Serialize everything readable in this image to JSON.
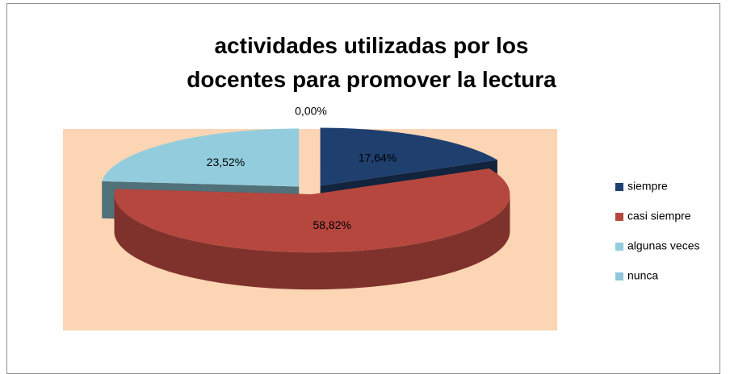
{
  "chart_data": {
    "type": "pie3d",
    "title": "actividades utilizadas por los docentes para promover la lectura",
    "categories": [
      "siempre",
      "casi siempre",
      "algunas veces",
      "nunca"
    ],
    "values": [
      17.64,
      58.82,
      23.52,
      0
    ],
    "value_labels": [
      "17,64%",
      "58,82%",
      "23,52%",
      "0,00%"
    ],
    "colors": [
      "#1f3f6e",
      "#b5473f",
      "#93cddd",
      "#8fc6d8"
    ],
    "legend": "right"
  }
}
